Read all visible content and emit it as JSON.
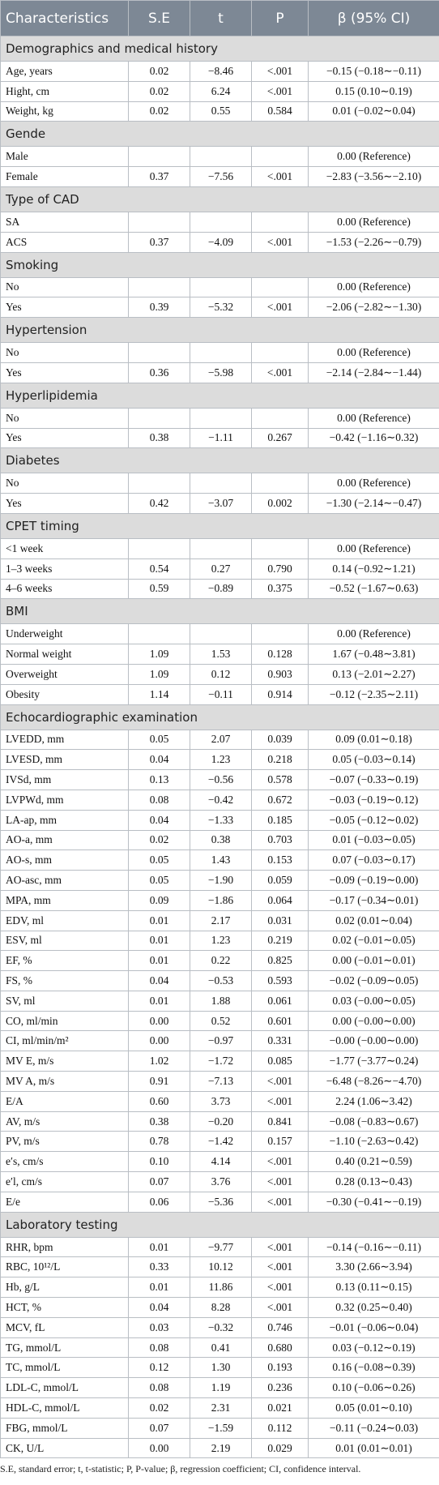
{
  "table": {
    "columns": [
      "Characteristics",
      "S.E",
      "t",
      "P",
      "β (95% CI)"
    ],
    "sections": [
      {
        "title": "Demographics and medical history",
        "rows": [
          [
            "Age, years",
            "0.02",
            "−8.46",
            "<.001",
            "−0.15 (−0.18∼−0.11)"
          ],
          [
            "Hight, cm",
            "0.02",
            "6.24",
            "<.001",
            "0.15 (0.10∼0.19)"
          ],
          [
            "Weight, kg",
            "0.02",
            "0.55",
            "0.584",
            "0.01 (−0.02∼0.04)"
          ]
        ]
      },
      {
        "title": "Gende",
        "rows": [
          [
            "Male",
            null,
            null,
            null,
            "0.00 (Reference)"
          ],
          [
            "Female",
            "0.37",
            "−7.56",
            "<.001",
            "−2.83 (−3.56∼−2.10)"
          ]
        ]
      },
      {
        "title": "Type of CAD",
        "rows": [
          [
            "SA",
            null,
            null,
            null,
            "0.00 (Reference)"
          ],
          [
            "ACS",
            "0.37",
            "−4.09",
            "<.001",
            "−1.53 (−2.26∼−0.79)"
          ]
        ]
      },
      {
        "title": "Smoking",
        "rows": [
          [
            "No",
            null,
            null,
            null,
            "0.00 (Reference)"
          ],
          [
            "Yes",
            "0.39",
            "−5.32",
            "<.001",
            "−2.06 (−2.82∼−1.30)"
          ]
        ]
      },
      {
        "title": "Hypertension",
        "rows": [
          [
            "No",
            null,
            null,
            null,
            "0.00 (Reference)"
          ],
          [
            "Yes",
            "0.36",
            "−5.98",
            "<.001",
            "−2.14 (−2.84∼−1.44)"
          ]
        ]
      },
      {
        "title": "Hyperlipidemia",
        "rows": [
          [
            "No",
            null,
            null,
            null,
            "0.00 (Reference)"
          ],
          [
            "Yes",
            "0.38",
            "−1.11",
            "0.267",
            "−0.42 (−1.16∼0.32)"
          ]
        ]
      },
      {
        "title": "Diabetes",
        "rows": [
          [
            "No",
            null,
            null,
            null,
            "0.00 (Reference)"
          ],
          [
            "Yes",
            "0.42",
            "−3.07",
            "0.002",
            "−1.30 (−2.14∼−0.47)"
          ]
        ]
      },
      {
        "title": "CPET timing",
        "rows": [
          [
            "<1 week",
            null,
            null,
            null,
            "0.00 (Reference)"
          ],
          [
            "1–3 weeks",
            "0.54",
            "0.27",
            "0.790",
            "0.14 (−0.92∼1.21)"
          ],
          [
            "4–6 weeks",
            "0.59",
            "−0.89",
            "0.375",
            "−0.52 (−1.67∼0.63)"
          ]
        ]
      },
      {
        "title": "BMI",
        "rows": [
          [
            "Underweight",
            null,
            null,
            null,
            "0.00 (Reference)"
          ],
          [
            "Normal weight",
            "1.09",
            "1.53",
            "0.128",
            "1.67 (−0.48∼3.81)"
          ],
          [
            "Overweight",
            "1.09",
            "0.12",
            "0.903",
            "0.13 (−2.01∼2.27)"
          ],
          [
            "Obesity",
            "1.14",
            "−0.11",
            "0.914",
            "−0.12 (−2.35∼2.11)"
          ]
        ]
      },
      {
        "title": "Echocardiographic examination",
        "rows": [
          [
            "LVEDD, mm",
            "0.05",
            "2.07",
            "0.039",
            "0.09 (0.01∼0.18)"
          ],
          [
            "LVESD, mm",
            "0.04",
            "1.23",
            "0.218",
            "0.05 (−0.03∼0.14)"
          ],
          [
            "IVSd, mm",
            "0.13",
            "−0.56",
            "0.578",
            "−0.07 (−0.33∼0.19)"
          ],
          [
            "LVPWd, mm",
            "0.08",
            "−0.42",
            "0.672",
            "−0.03 (−0.19∼0.12)"
          ],
          [
            "LA-ap, mm",
            "0.04",
            "−1.33",
            "0.185",
            "−0.05 (−0.12∼0.02)"
          ],
          [
            "AO-a, mm",
            "0.02",
            "0.38",
            "0.703",
            "0.01 (−0.03∼0.05)"
          ],
          [
            "AO-s, mm",
            "0.05",
            "1.43",
            "0.153",
            "0.07 (−0.03∼0.17)"
          ],
          [
            "AO-asc, mm",
            "0.05",
            "−1.90",
            "0.059",
            "−0.09 (−0.19∼0.00)"
          ],
          [
            "MPA, mm",
            "0.09",
            "−1.86",
            "0.064",
            "−0.17 (−0.34∼0.01)"
          ],
          [
            "EDV, ml",
            "0.01",
            "2.17",
            "0.031",
            "0.02 (0.01∼0.04)"
          ],
          [
            "ESV, ml",
            "0.01",
            "1.23",
            "0.219",
            "0.02 (−0.01∼0.05)"
          ],
          [
            "EF, %",
            "0.01",
            "0.22",
            "0.825",
            "0.00 (−0.01∼0.01)"
          ],
          [
            "FS, %",
            "0.04",
            "−0.53",
            "0.593",
            "−0.02 (−0.09∼0.05)"
          ],
          [
            "SV, ml",
            "0.01",
            "1.88",
            "0.061",
            "0.03 (−0.00∼0.05)"
          ],
          [
            "CO, ml/min",
            "0.00",
            "0.52",
            "0.601",
            "0.00 (−0.00∼0.00)"
          ],
          [
            "CI, ml/min/m²",
            "0.00",
            "−0.97",
            "0.331",
            "−0.00 (−0.00∼0.00)"
          ],
          [
            "MV E, m/s",
            "1.02",
            "−1.72",
            "0.085",
            "−1.77 (−3.77∼0.24)"
          ],
          [
            "MV A, m/s",
            "0.91",
            "−7.13",
            "<.001",
            "−6.48 (−8.26∼−4.70)"
          ],
          [
            "E/A",
            "0.60",
            "3.73",
            "<.001",
            "2.24 (1.06∼3.42)"
          ],
          [
            "AV, m/s",
            "0.38",
            "−0.20",
            "0.841",
            "−0.08 (−0.83∼0.67)"
          ],
          [
            "PV, m/s",
            "0.78",
            "−1.42",
            "0.157",
            "−1.10 (−2.63∼0.42)"
          ],
          [
            "e′s, cm/s",
            "0.10",
            "4.14",
            "<.001",
            "0.40 (0.21∼0.59)"
          ],
          [
            "e′l, cm/s",
            "0.07",
            "3.76",
            "<.001",
            "0.28 (0.13∼0.43)"
          ],
          [
            "E/e",
            "0.06",
            "−5.36",
            "<.001",
            "−0.30 (−0.41∼−0.19)"
          ]
        ]
      },
      {
        "title": "Laboratory testing",
        "rows": [
          [
            "RHR, bpm",
            "0.01",
            "−9.77",
            "<.001",
            "−0.14 (−0.16∼−0.11)"
          ],
          [
            "RBC, 10¹²/L",
            "0.33",
            "10.12",
            "<.001",
            "3.30 (2.66∼3.94)"
          ],
          [
            "Hb, g/L",
            "0.01",
            "11.86",
            "<.001",
            "0.13 (0.11∼0.15)"
          ],
          [
            "HCT, %",
            "0.04",
            "8.28",
            "<.001",
            "0.32 (0.25∼0.40)"
          ],
          [
            "MCV, fL",
            "0.03",
            "−0.32",
            "0.746",
            "−0.01 (−0.06∼0.04)"
          ],
          [
            "TG, mmol/L",
            "0.08",
            "0.41",
            "0.680",
            "0.03 (−0.12∼0.19)"
          ],
          [
            "TC, mmol/L",
            "0.12",
            "1.30",
            "0.193",
            "0.16 (−0.08∼0.39)"
          ],
          [
            "LDL-C, mmol/L",
            "0.08",
            "1.19",
            "0.236",
            "0.10 (−0.06∼0.26)"
          ],
          [
            "HDL-C, mmol/L",
            "0.02",
            "2.31",
            "0.021",
            "0.05 (0.01∼0.10)"
          ],
          [
            "FBG, mmol/L",
            "0.07",
            "−1.59",
            "0.112",
            "−0.11 (−0.24∼0.03)"
          ],
          [
            "CK, U/L",
            "0.00",
            "2.19",
            "0.029",
            "0.01 (0.01∼0.01)"
          ]
        ]
      }
    ],
    "footnote": "S.E, standard error; t, t-statistic; P, P-value; β, regression coefficient; CI, confidence interval."
  }
}
